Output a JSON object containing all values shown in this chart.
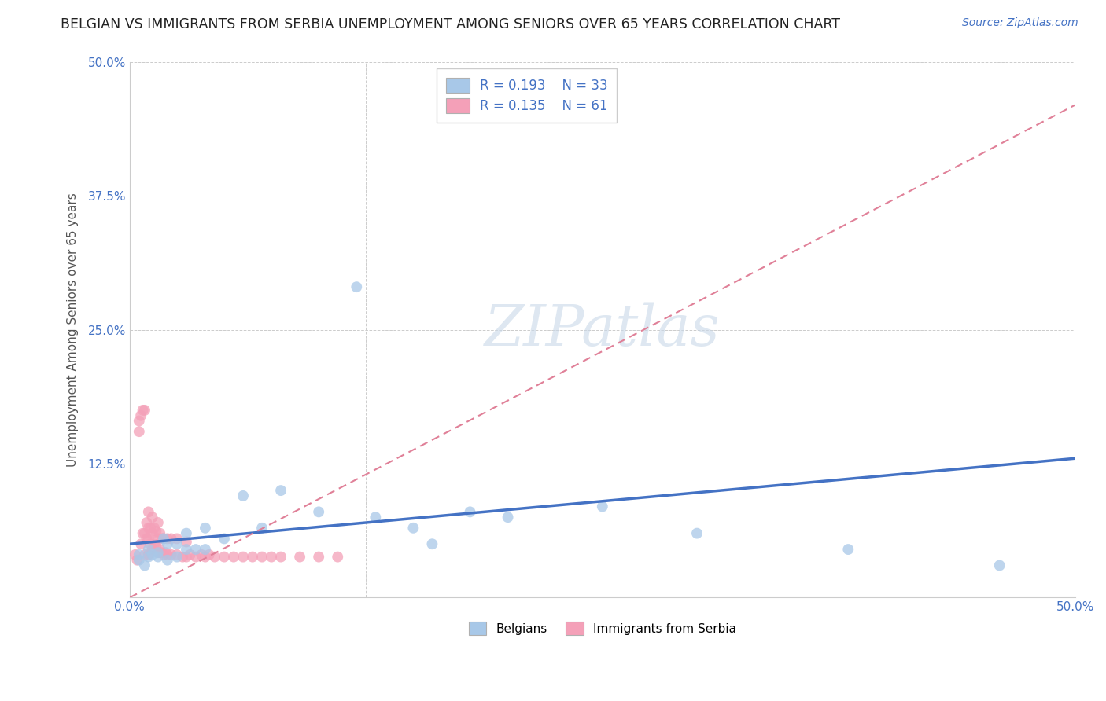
{
  "title": "BELGIAN VS IMMIGRANTS FROM SERBIA UNEMPLOYMENT AMONG SENIORS OVER 65 YEARS CORRELATION CHART",
  "source": "Source: ZipAtlas.com",
  "ylabel": "Unemployment Among Seniors over 65 years",
  "xlim": [
    0.0,
    0.5
  ],
  "ylim": [
    0.0,
    0.5
  ],
  "xticks": [
    0.0,
    0.125,
    0.25,
    0.375,
    0.5
  ],
  "yticks": [
    0.0,
    0.125,
    0.25,
    0.375,
    0.5
  ],
  "xticklabels": [
    "0.0%",
    "",
    "",
    "",
    "50.0%"
  ],
  "yticklabels": [
    "",
    "12.5%",
    "25.0%",
    "37.5%",
    "50.0%"
  ],
  "belgians_x": [
    0.005,
    0.005,
    0.008,
    0.01,
    0.01,
    0.012,
    0.015,
    0.015,
    0.018,
    0.02,
    0.02,
    0.025,
    0.025,
    0.03,
    0.03,
    0.035,
    0.04,
    0.04,
    0.05,
    0.06,
    0.07,
    0.08,
    0.1,
    0.12,
    0.13,
    0.15,
    0.16,
    0.18,
    0.2,
    0.25,
    0.3,
    0.38,
    0.46
  ],
  "belgians_y": [
    0.04,
    0.035,
    0.03,
    0.045,
    0.038,
    0.04,
    0.038,
    0.042,
    0.055,
    0.05,
    0.035,
    0.05,
    0.038,
    0.06,
    0.045,
    0.045,
    0.065,
    0.045,
    0.055,
    0.095,
    0.065,
    0.1,
    0.08,
    0.29,
    0.075,
    0.065,
    0.05,
    0.08,
    0.075,
    0.085,
    0.06,
    0.045,
    0.03
  ],
  "serbia_x": [
    0.003,
    0.004,
    0.005,
    0.005,
    0.006,
    0.006,
    0.007,
    0.007,
    0.008,
    0.008,
    0.008,
    0.009,
    0.009,
    0.01,
    0.01,
    0.01,
    0.01,
    0.011,
    0.011,
    0.012,
    0.012,
    0.012,
    0.013,
    0.013,
    0.014,
    0.014,
    0.015,
    0.015,
    0.015,
    0.016,
    0.016,
    0.017,
    0.017,
    0.018,
    0.018,
    0.019,
    0.02,
    0.02,
    0.022,
    0.022,
    0.025,
    0.025,
    0.028,
    0.03,
    0.03,
    0.032,
    0.035,
    0.038,
    0.04,
    0.042,
    0.045,
    0.05,
    0.055,
    0.06,
    0.065,
    0.07,
    0.075,
    0.08,
    0.09,
    0.1,
    0.11
  ],
  "serbia_y": [
    0.04,
    0.035,
    0.155,
    0.165,
    0.05,
    0.17,
    0.06,
    0.175,
    0.04,
    0.06,
    0.175,
    0.055,
    0.07,
    0.04,
    0.055,
    0.065,
    0.08,
    0.05,
    0.065,
    0.045,
    0.06,
    0.075,
    0.05,
    0.065,
    0.048,
    0.062,
    0.042,
    0.055,
    0.07,
    0.045,
    0.06,
    0.042,
    0.055,
    0.04,
    0.055,
    0.042,
    0.04,
    0.055,
    0.04,
    0.055,
    0.04,
    0.055,
    0.038,
    0.038,
    0.052,
    0.04,
    0.038,
    0.04,
    0.038,
    0.04,
    0.038,
    0.038,
    0.038,
    0.038,
    0.038,
    0.038,
    0.038,
    0.038,
    0.038,
    0.038,
    0.038
  ],
  "belgian_color": "#a8c8e8",
  "serbia_color": "#f4a0b8",
  "belgian_line_color": "#4472c4",
  "serbia_line_color": "#e08098",
  "belgian_line_x0": 0.0,
  "belgian_line_y0": 0.05,
  "belgian_line_x1": 0.5,
  "belgian_line_y1": 0.13,
  "serbia_line_x0": 0.0,
  "serbia_line_y0": 0.0,
  "serbia_line_x1": 0.5,
  "serbia_line_y1": 0.46,
  "belgian_R": 0.193,
  "belgian_N": 33,
  "serbia_R": 0.135,
  "serbia_N": 61,
  "watermark": "ZIPatlas",
  "background_color": "#ffffff",
  "grid_color": "#cccccc",
  "title_fontsize": 12.5,
  "axis_label_fontsize": 11,
  "tick_fontsize": 11,
  "legend_text_color": "#4472c4"
}
